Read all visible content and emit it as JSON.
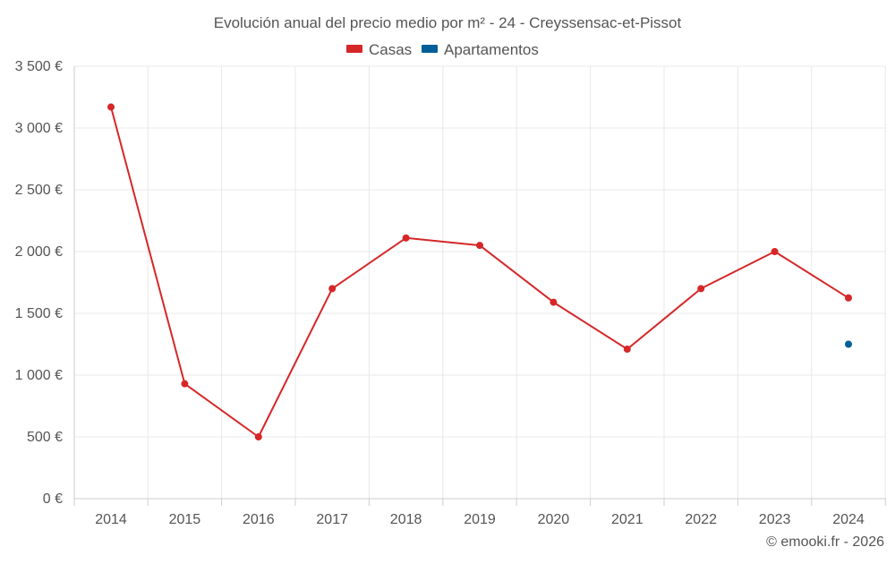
{
  "chart_data": {
    "type": "line",
    "title": "Evolución anual del precio medio por m² - 24 - Creyssensac-et-Pissot",
    "categories": [
      "2014",
      "2015",
      "2016",
      "2017",
      "2018",
      "2019",
      "2020",
      "2021",
      "2022",
      "2023",
      "2024"
    ],
    "series": [
      {
        "name": "Casas",
        "color": "#d62728",
        "values": [
          3170,
          930,
          500,
          1700,
          2110,
          2050,
          1590,
          1210,
          1700,
          2000,
          1625
        ]
      },
      {
        "name": "Apartamentos",
        "color": "#005f99",
        "values": [
          null,
          null,
          null,
          null,
          null,
          null,
          null,
          null,
          null,
          null,
          1250
        ]
      }
    ],
    "ylim": [
      0,
      3500
    ],
    "yticks": [
      0,
      500,
      1000,
      1500,
      2000,
      2500,
      3000,
      3500
    ],
    "ytick_labels": [
      "0 €",
      "500 €",
      "1 000 €",
      "1 500 €",
      "2 000 €",
      "2 500 €",
      "3 000 €",
      "3 500 €"
    ],
    "xlabel": "",
    "ylabel": "",
    "grid": true,
    "legend_position": "top-center"
  },
  "credit": "© emooki.fr - 2026"
}
